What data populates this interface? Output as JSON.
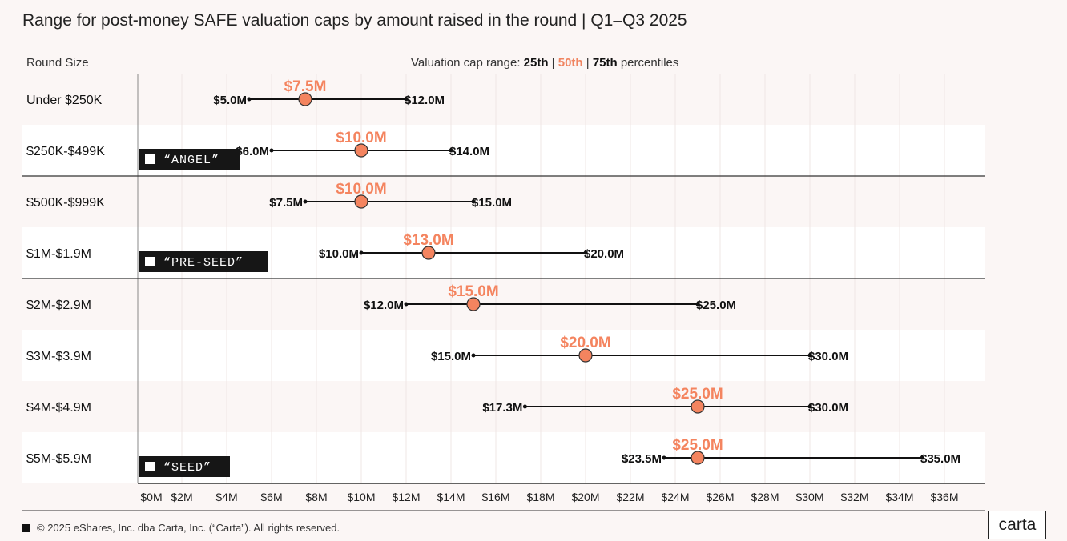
{
  "chart_data": {
    "type": "range",
    "title": "Range for post-money SAFE valuation caps by amount raised in the round | Q1–Q3 2025",
    "ylabel": "Round Size",
    "legend": {
      "prefix": "Valuation cap range:",
      "p25": "25th",
      "p50": "50th",
      "p75": "75th",
      "suffix": "percentiles"
    },
    "xlim": [
      0,
      36
    ],
    "xticks": [
      "$0M",
      "$2M",
      "$4M",
      "$6M",
      "$8M",
      "$10M",
      "$12M",
      "$14M",
      "$16M",
      "$18M",
      "$20M",
      "$22M",
      "$24M",
      "$26M",
      "$28M",
      "$30M",
      "$32M",
      "$34M",
      "$36M"
    ],
    "grid": true,
    "categories": [
      "Under $250K",
      "$250K-$499K",
      "$500K-$999K",
      "$1M-$1.9M",
      "$2M-$2.9M",
      "$3M-$3.9M",
      "$4M-$4.9M",
      "$5M-$5.9M"
    ],
    "p25": [
      5.0,
      6.0,
      7.5,
      10.0,
      12.0,
      15.0,
      17.3,
      23.5
    ],
    "p50": [
      7.5,
      10.0,
      10.0,
      13.0,
      15.0,
      20.0,
      25.0,
      25.0
    ],
    "p75": [
      12.0,
      14.0,
      15.0,
      20.0,
      25.0,
      30.0,
      30.0,
      35.0
    ],
    "p25_labels": [
      "$5.0M",
      "$6.0M",
      "$7.5M",
      "$10.0M",
      "$12.0M",
      "$15.0M",
      "$17.3M",
      "$23.5M"
    ],
    "p50_labels": [
      "$7.5M",
      "$10.0M",
      "$10.0M",
      "$13.0M",
      "$15.0M",
      "$20.0M",
      "$25.0M",
      "$25.0M"
    ],
    "p75_labels": [
      "$12.0M",
      "$14.0M",
      "$15.0M",
      "$20.0M",
      "$25.0M",
      "$30.0M",
      "$30.0M",
      "$35.0M"
    ],
    "stages": [
      {
        "label": "“ANGEL”",
        "row": 1
      },
      {
        "label": "“PRE-SEED”",
        "row": 3
      },
      {
        "label": "“SEED”",
        "row": 7
      }
    ],
    "colors": {
      "median": "#f4845f",
      "line": "#111111",
      "background": "#fbf6f5"
    }
  },
  "footer": {
    "copyright": "© 2025 eShares, Inc. dba Carta, Inc. (“Carta”). All rights reserved.",
    "logo": "carta"
  }
}
